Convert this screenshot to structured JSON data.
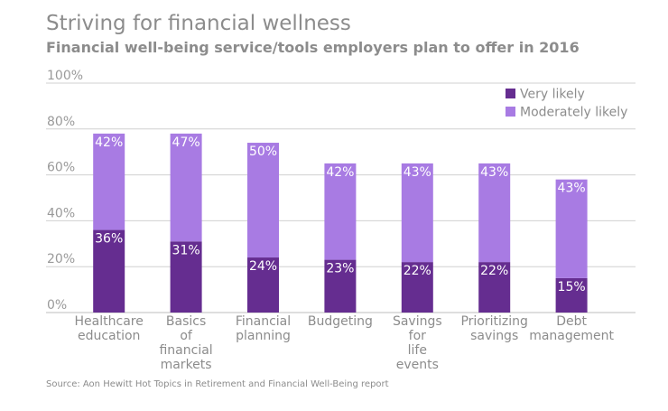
{
  "header": {
    "title": "Striving for financial wellness",
    "subtitle": "Financial well-being service/tools employers plan to offer in 2016"
  },
  "source": "Source: Aon Hewitt Hot Topics in Retirement and Financial Well-Being report",
  "colors": {
    "very_likely": "#652d90",
    "moderately_likely": "#a87be3",
    "grid": "#d0d0d0",
    "axis": "#bdbdbd"
  },
  "chart_data": {
    "type": "bar",
    "stacked": true,
    "title": "Striving for financial wellness",
    "subtitle": "Financial well-being service/tools employers plan to offer in 2016",
    "categories": [
      [
        "Healthcare",
        "education"
      ],
      [
        "Basics",
        "of",
        "financial",
        "markets"
      ],
      [
        "Financial",
        "planning"
      ],
      [
        "Budgeting"
      ],
      [
        "Savings",
        "for",
        "life",
        "events"
      ],
      [
        "Prioritizing",
        "savings"
      ],
      [
        "Debt",
        "management"
      ]
    ],
    "series": [
      {
        "name": "Very likely",
        "values": [
          36,
          31,
          24,
          23,
          22,
          22,
          15
        ],
        "labels": [
          "36%",
          "31%",
          "24%",
          "23%",
          "22%",
          "22%",
          "15%"
        ]
      },
      {
        "name": "Moderately likely",
        "values": [
          42,
          47,
          50,
          42,
          43,
          43,
          43
        ],
        "labels": [
          "42%",
          "47%",
          "50%",
          "42%",
          "43%",
          "43%",
          "43%"
        ]
      }
    ],
    "y_ticks": [
      "0%",
      "20%",
      "40%",
      "60%",
      "80%",
      "100%"
    ],
    "ylim": [
      0,
      100
    ],
    "xlabel": "",
    "ylabel": "",
    "grid": true,
    "legend": "top-right"
  }
}
